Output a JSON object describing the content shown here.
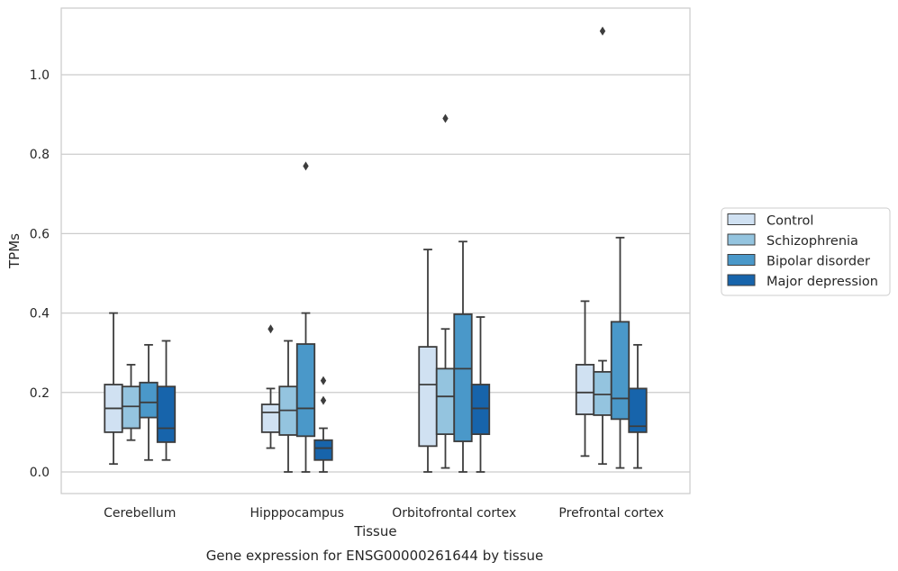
{
  "chart_data": {
    "type": "box",
    "title": "",
    "caption": "Gene expression for ENSG00000261644 by tissue",
    "xlabel": "Tissue",
    "ylabel": "TPMs",
    "ylim": [
      -0.055,
      1.17
    ],
    "yticks": [
      0.0,
      0.2,
      0.4,
      0.6,
      0.8,
      1.0
    ],
    "ytick_labels": [
      "0.0",
      "0.2",
      "0.4",
      "0.6",
      "0.8",
      "1.0"
    ],
    "grid": "horizontal",
    "legend_position": "right",
    "categories": [
      "Cerebellum",
      "Hipppocampus",
      "Orbitofrontal cortex",
      "Prefrontal cortex"
    ],
    "series": [
      {
        "name": "Control",
        "color": "#d0e1f2",
        "boxes": [
          {
            "whisker_low": 0.02,
            "q1": 0.1,
            "median": 0.16,
            "q3": 0.22,
            "whisker_high": 0.4,
            "outliers": []
          },
          {
            "whisker_low": 0.06,
            "q1": 0.1,
            "median": 0.15,
            "q3": 0.17,
            "whisker_high": 0.21,
            "outliers": [
              0.36
            ]
          },
          {
            "whisker_low": 0.0,
            "q1": 0.065,
            "median": 0.22,
            "q3": 0.315,
            "whisker_high": 0.56,
            "outliers": []
          },
          {
            "whisker_low": 0.04,
            "q1": 0.145,
            "median": 0.2,
            "q3": 0.27,
            "whisker_high": 0.43,
            "outliers": []
          }
        ]
      },
      {
        "name": "Schizophrenia",
        "color": "#94c4df",
        "boxes": [
          {
            "whisker_low": 0.08,
            "q1": 0.11,
            "median": 0.165,
            "q3": 0.215,
            "whisker_high": 0.27,
            "outliers": []
          },
          {
            "whisker_low": 0.0,
            "q1": 0.093,
            "median": 0.155,
            "q3": 0.215,
            "whisker_high": 0.33,
            "outliers": []
          },
          {
            "whisker_low": 0.01,
            "q1": 0.095,
            "median": 0.19,
            "q3": 0.26,
            "whisker_high": 0.36,
            "outliers": [
              0.89
            ]
          },
          {
            "whisker_low": 0.02,
            "q1": 0.143,
            "median": 0.195,
            "q3": 0.252,
            "whisker_high": 0.28,
            "outliers": [
              1.11
            ]
          }
        ]
      },
      {
        "name": "Bipolar disorder",
        "color": "#4a98c9",
        "boxes": [
          {
            "whisker_low": 0.03,
            "q1": 0.137,
            "median": 0.175,
            "q3": 0.225,
            "whisker_high": 0.32,
            "outliers": []
          },
          {
            "whisker_low": 0.0,
            "q1": 0.09,
            "median": 0.16,
            "q3": 0.322,
            "whisker_high": 0.4,
            "outliers": [
              0.77
            ]
          },
          {
            "whisker_low": 0.0,
            "q1": 0.077,
            "median": 0.26,
            "q3": 0.397,
            "whisker_high": 0.58,
            "outliers": []
          },
          {
            "whisker_low": 0.01,
            "q1": 0.133,
            "median": 0.185,
            "q3": 0.378,
            "whisker_high": 0.59,
            "outliers": []
          }
        ]
      },
      {
        "name": "Major depression",
        "color": "#1764ab",
        "boxes": [
          {
            "whisker_low": 0.03,
            "q1": 0.075,
            "median": 0.11,
            "q3": 0.215,
            "whisker_high": 0.33,
            "outliers": []
          },
          {
            "whisker_low": 0.0,
            "q1": 0.03,
            "median": 0.06,
            "q3": 0.08,
            "whisker_high": 0.11,
            "outliers": [
              0.18,
              0.23
            ]
          },
          {
            "whisker_low": 0.0,
            "q1": 0.095,
            "median": 0.16,
            "q3": 0.22,
            "whisker_high": 0.39,
            "outliers": []
          },
          {
            "whisker_low": 0.01,
            "q1": 0.1,
            "median": 0.115,
            "q3": 0.21,
            "whisker_high": 0.32,
            "outliers": []
          }
        ]
      }
    ]
  }
}
